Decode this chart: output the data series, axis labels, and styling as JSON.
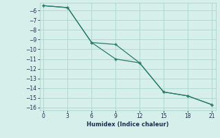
{
  "line1_x": [
    0,
    3,
    6,
    9,
    12,
    15,
    18,
    21
  ],
  "line1_y": [
    -5.5,
    -5.7,
    -9.3,
    -11.0,
    -11.4,
    -14.4,
    -14.8,
    -15.7
  ],
  "line2_x": [
    0,
    3,
    6,
    9,
    12,
    15,
    18,
    21
  ],
  "line2_y": [
    -5.5,
    -5.7,
    -9.3,
    -9.5,
    -11.4,
    -14.4,
    -14.8,
    -15.7
  ],
  "line_color": "#2a7a6a",
  "bg_color": "#d6efeb",
  "grid_color": "#a8d5cc",
  "xlabel": "Humidex (Indice chaleur)",
  "ylim_min": -16.3,
  "ylim_max": -5.2,
  "xlim_min": -0.5,
  "xlim_max": 21.5,
  "xticks": [
    0,
    3,
    6,
    9,
    12,
    15,
    18,
    21
  ],
  "yticks": [
    -6,
    -7,
    -8,
    -9,
    -10,
    -11,
    -12,
    -13,
    -14,
    -15,
    -16
  ],
  "tick_labelsize": 5.5,
  "xlabel_fontsize": 6.0,
  "marker": "+"
}
